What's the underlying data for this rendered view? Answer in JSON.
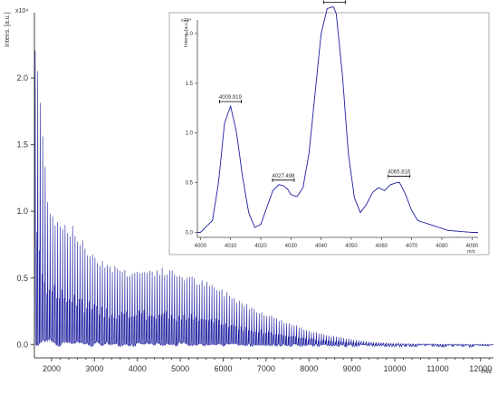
{
  "colors": {
    "spectrum": "#1f1fa0",
    "axis": "#444444",
    "background": "#ffffff",
    "inset_border": "#999999"
  },
  "chart_data": [
    {
      "type": "line",
      "ylabel": "Intens. [a.u.]",
      "y_multiplier": "x10⁴",
      "xlabel": "m/z",
      "xlim": [
        1600,
        12300
      ],
      "ylim": [
        -0.1,
        2.45
      ],
      "x_ticks": [
        "2000",
        "3000",
        "4000",
        "5000",
        "6000",
        "7000",
        "8000",
        "9000",
        "10000",
        "11000",
        "12000"
      ],
      "y_ticks": [
        "0.0",
        "0.5",
        "1.0",
        "1.5",
        "2.0"
      ],
      "grid": false,
      "description_of_series": "dense MALDI-TOF polymer series, envelope peaks ~2.35 near m/z 1650, decays to ~0 by m/z 10500",
      "series": [
        {
          "envelope_x": [
            1650,
            1700,
            1800,
            1900,
            2000,
            2100,
            2200,
            2400,
            2600,
            2800,
            3000,
            3200,
            3500,
            3800,
            4000,
            4300,
            4600,
            5000,
            5400,
            5800,
            6200,
            6600,
            7000,
            7500,
            8000,
            8500,
            9000,
            9500,
            10000,
            10500,
            11000,
            12000,
            12300
          ],
          "envelope_y": [
            2.35,
            2.08,
            1.6,
            1.2,
            1.05,
            0.98,
            0.96,
            0.93,
            0.85,
            0.75,
            0.7,
            0.65,
            0.6,
            0.57,
            0.57,
            0.58,
            0.58,
            0.55,
            0.5,
            0.45,
            0.38,
            0.3,
            0.24,
            0.17,
            0.11,
            0.07,
            0.04,
            0.02,
            0.01,
            0.005,
            0.003,
            0.0,
            0.0
          ],
          "peak_spacing_mz": 58,
          "baseline": 0.0
        }
      ]
    },
    {
      "type": "line",
      "subtype": "inset",
      "ylabel": "Intens. [a.u.]",
      "y_multiplier": "x10⁴",
      "xlabel": "m/z",
      "xlim": [
        3999,
        4092
      ],
      "ylim": [
        -0.05,
        2.1
      ],
      "x_ticks": [
        "4000",
        "4010",
        "4020",
        "4030",
        "4040",
        "4050",
        "4060",
        "4070",
        "4080",
        "4090"
      ],
      "y_ticks": [
        "0.0",
        "0.5",
        "1.0",
        "1.5",
        "2.0"
      ],
      "grid": false,
      "peak_labels": [
        {
          "x": 4009.919,
          "y": 1.27,
          "label": "4009.919"
        },
        {
          "x": 4027.498,
          "y": 0.48,
          "label": "4027.498"
        },
        {
          "x": 4044.462,
          "y": 2.27,
          "label": "4044.462"
        },
        {
          "x": 4065.816,
          "y": 0.52,
          "label": "4065.816"
        }
      ],
      "series": [
        {
          "x": [
            4000,
            4004,
            4006,
            4008,
            4010,
            4012,
            4014,
            4016,
            4018,
            4020,
            4022,
            4024,
            4026,
            4027.5,
            4029,
            4030,
            4032,
            4034,
            4036,
            4038,
            4040,
            4042,
            4044,
            4045,
            4047,
            4049,
            4051,
            4053,
            4055,
            4057,
            4059,
            4061,
            4063,
            4065,
            4066,
            4068,
            4070,
            4072,
            4074,
            4076,
            4078,
            4080,
            4082,
            4086,
            4090,
            4092
          ],
          "y": [
            0.0,
            0.12,
            0.5,
            1.1,
            1.27,
            1.0,
            0.55,
            0.2,
            0.05,
            0.08,
            0.25,
            0.42,
            0.48,
            0.47,
            0.43,
            0.38,
            0.36,
            0.45,
            0.8,
            1.4,
            2.0,
            2.25,
            2.27,
            2.2,
            1.6,
            0.8,
            0.35,
            0.2,
            0.28,
            0.4,
            0.45,
            0.42,
            0.48,
            0.5,
            0.5,
            0.38,
            0.22,
            0.12,
            0.1,
            0.08,
            0.06,
            0.04,
            0.02,
            0.01,
            0.0,
            0.0
          ]
        }
      ]
    }
  ]
}
